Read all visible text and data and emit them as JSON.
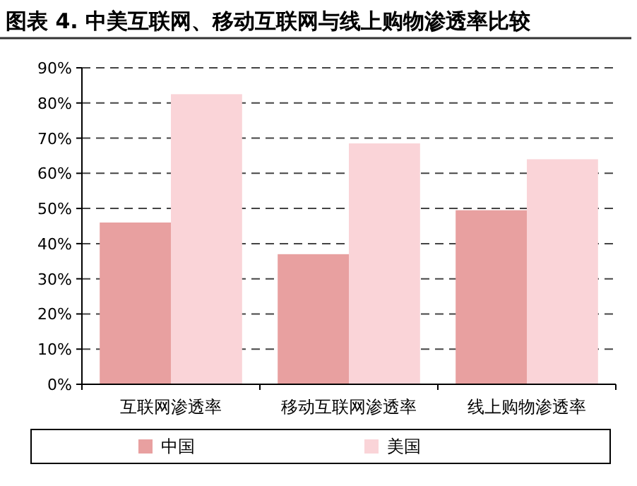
{
  "chart_data": {
    "type": "bar",
    "title": "图表 4. 中美互联网、移动互联网与线上购物渗透率比较",
    "categories": [
      "互联网渗透率",
      "移动互联网渗透率",
      "线上购物渗透率"
    ],
    "series": [
      {
        "name": "中国",
        "color": "#e8a0a0",
        "values": [
          46,
          37,
          49.5
        ]
      },
      {
        "name": "美国",
        "color": "#fad4d8",
        "values": [
          82.5,
          68.5,
          64
        ]
      }
    ],
    "ylim": [
      0,
      90
    ],
    "yticks": [
      {
        "value": 0,
        "label": "0%"
      },
      {
        "value": 10,
        "label": "10%"
      },
      {
        "value": 20,
        "label": "20%"
      },
      {
        "value": 30,
        "label": "30%"
      },
      {
        "value": 40,
        "label": "40%"
      },
      {
        "value": 50,
        "label": "50%"
      },
      {
        "value": 60,
        "label": "60%"
      },
      {
        "value": 70,
        "label": "70%"
      },
      {
        "value": 80,
        "label": "80%"
      },
      {
        "value": 90,
        "label": "90%"
      }
    ],
    "grid": "y",
    "legend": "bottom"
  }
}
